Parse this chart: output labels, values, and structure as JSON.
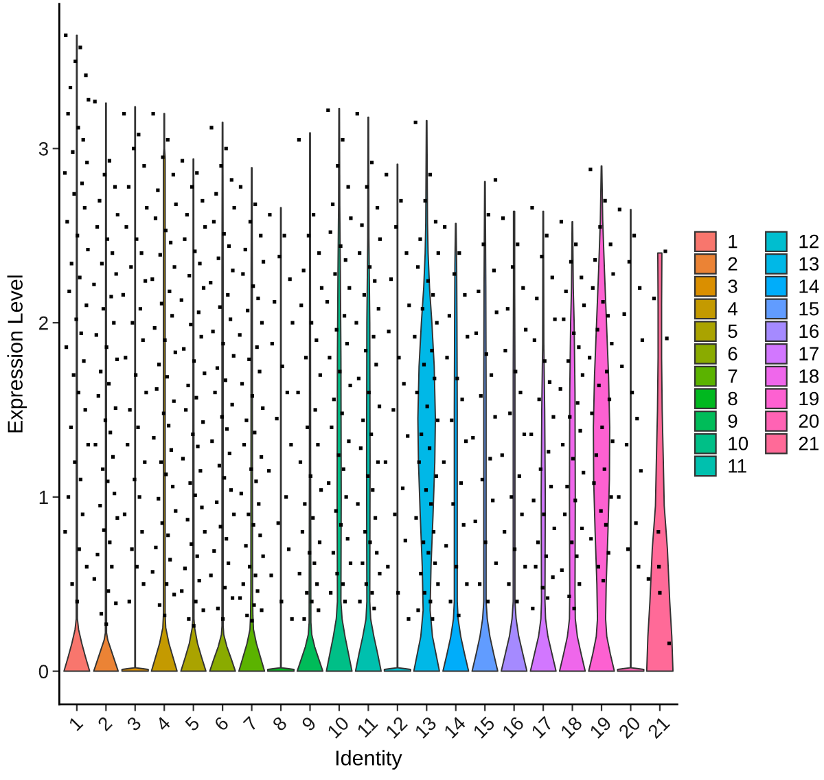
{
  "chart_data": {
    "type": "scatter",
    "xlabel": "Identity",
    "ylabel": "Expression Level",
    "xlim": [
      0.4,
      21.6
    ],
    "xticks": [
      1,
      2,
      3,
      4,
      5,
      6,
      7,
      8,
      9,
      10,
      11,
      12,
      13,
      14,
      15,
      16,
      17,
      18,
      19,
      20,
      21
    ],
    "ylim": [
      -0.19,
      3.83
    ],
    "yticks": [
      0,
      1,
      2,
      3
    ],
    "legend": "right",
    "series": [
      {
        "name": "1",
        "type": "area",
        "color": "#f8766d",
        "x": [
          1.44,
          1.3,
          1.17,
          1.06,
          1.02,
          1.01,
          0.99,
          0.98,
          0.94,
          0.83,
          0.7,
          0.56
        ],
        "values": [
          0,
          0.08,
          0.16,
          0.24,
          0.3,
          3.65,
          3.65,
          0.3,
          0.24,
          0.16,
          0.08,
          0
        ]
      },
      {
        "name": "2",
        "type": "area",
        "color": "#eb8335",
        "x": [
          2.42,
          2.3,
          2.18,
          2.06,
          2.02,
          2.01,
          1.99,
          1.98,
          1.94,
          1.82,
          1.7,
          1.58
        ],
        "values": [
          0,
          0.06,
          0.12,
          0.18,
          0.22,
          3.26,
          3.26,
          0.22,
          0.18,
          0.12,
          0.06,
          0
        ]
      },
      {
        "name": "3",
        "type": "area",
        "color": "#da8f00",
        "x": [
          3.45,
          3.45,
          3.01,
          3.01,
          2.99,
          2.99,
          2.55,
          2.55
        ],
        "values": [
          0,
          0.01,
          0.02,
          3.24,
          3.24,
          0.02,
          0.01,
          0
        ]
      },
      {
        "name": "4",
        "type": "area",
        "color": "#c49a00",
        "x": [
          4.44,
          4.3,
          4.16,
          4.05,
          4.03,
          4.03,
          4.01,
          4.01,
          3.99,
          3.99,
          3.97,
          3.97,
          3.95,
          3.84,
          3.7,
          3.56
        ],
        "values": [
          0,
          0.08,
          0.16,
          0.25,
          0.32,
          2.95,
          3.0,
          3.2,
          3.2,
          3.0,
          2.95,
          0.32,
          0.25,
          0.16,
          0.08,
          0
        ]
      },
      {
        "name": "5",
        "type": "area",
        "color": "#aaa300",
        "x": [
          5.43,
          5.28,
          5.14,
          5.04,
          5.02,
          5.01,
          4.99,
          4.98,
          4.96,
          4.86,
          4.72,
          4.57
        ],
        "values": [
          0,
          0.08,
          0.16,
          0.25,
          0.3,
          2.94,
          2.94,
          0.3,
          0.25,
          0.16,
          0.08,
          0
        ]
      },
      {
        "name": "6",
        "type": "area",
        "color": "#8aab00",
        "x": [
          6.44,
          6.3,
          6.15,
          6.04,
          6.02,
          6.02,
          6.01,
          5.99,
          5.98,
          5.98,
          5.96,
          5.85,
          5.7,
          5.56
        ],
        "values": [
          0,
          0.07,
          0.14,
          0.21,
          0.26,
          2.3,
          3.15,
          3.15,
          2.3,
          0.26,
          0.21,
          0.14,
          0.07,
          0
        ]
      },
      {
        "name": "7",
        "type": "area",
        "color": "#5bb300",
        "x": [
          7.44,
          7.3,
          7.16,
          7.06,
          7.04,
          7.03,
          7.02,
          7.01,
          6.99,
          6.98,
          6.97,
          6.96,
          6.94,
          6.84,
          6.7,
          6.56
        ],
        "values": [
          0,
          0.08,
          0.16,
          0.24,
          0.32,
          0.45,
          2.3,
          2.89,
          2.89,
          2.3,
          0.45,
          0.32,
          0.24,
          0.16,
          0.08,
          0
        ]
      },
      {
        "name": "8",
        "type": "area",
        "color": "#00b81f",
        "x": [
          8.45,
          8.45,
          8.01,
          8.01,
          7.99,
          7.99,
          7.55,
          7.55
        ],
        "values": [
          0,
          0.01,
          0.02,
          2.66,
          2.66,
          0.02,
          0.01,
          0
        ]
      },
      {
        "name": "9",
        "type": "area",
        "color": "#00bc59",
        "x": [
          9.44,
          9.3,
          9.16,
          9.06,
          9.03,
          9.02,
          9.01,
          8.99,
          8.98,
          8.97,
          8.94,
          8.84,
          8.7,
          8.56
        ],
        "values": [
          0,
          0.07,
          0.14,
          0.21,
          0.28,
          1.2,
          3.09,
          3.09,
          1.2,
          0.28,
          0.21,
          0.14,
          0.07,
          0
        ]
      },
      {
        "name": "10",
        "type": "area",
        "color": "#00bf87",
        "x": [
          10.44,
          10.32,
          10.2,
          10.1,
          10.06,
          10.07,
          10.06,
          10.04,
          10.02,
          10.01,
          9.99,
          9.98,
          9.96,
          9.94,
          9.93,
          9.94,
          9.9,
          9.8,
          9.68,
          9.56
        ],
        "values": [
          0,
          0.1,
          0.2,
          0.3,
          0.4,
          1.0,
          1.8,
          2.3,
          2.67,
          3.23,
          3.23,
          2.67,
          2.3,
          1.8,
          1.0,
          0.4,
          0.3,
          0.2,
          0.1,
          0
        ]
      },
      {
        "name": "11",
        "type": "area",
        "color": "#00c0ae",
        "x": [
          11.44,
          11.32,
          11.19,
          11.08,
          11.05,
          11.06,
          11.05,
          11.02,
          11.01,
          10.99,
          10.98,
          10.95,
          10.94,
          10.95,
          10.92,
          10.81,
          10.68,
          10.56
        ],
        "values": [
          0,
          0.1,
          0.2,
          0.3,
          0.4,
          1.2,
          2.0,
          2.49,
          3.18,
          3.18,
          2.49,
          2.0,
          1.2,
          0.4,
          0.3,
          0.2,
          0.1,
          0
        ]
      },
      {
        "name": "12",
        "type": "area",
        "color": "#00becf",
        "x": [
          12.45,
          12.45,
          12.01,
          12.01,
          11.99,
          11.99,
          11.55,
          11.55
        ],
        "values": [
          0,
          0.01,
          0.02,
          2.91,
          2.91,
          0.02,
          0.01,
          0
        ]
      },
      {
        "name": "13",
        "type": "area",
        "color": "#00b8e7",
        "x": [
          13.44,
          13.32,
          13.2,
          13.12,
          13.15,
          13.22,
          13.28,
          13.3,
          13.26,
          13.18,
          13.1,
          13.05,
          13.03,
          13.01,
          12.99,
          12.97,
          12.95,
          12.9,
          12.82,
          12.74,
          12.7,
          12.72,
          12.78,
          12.85,
          12.88,
          12.8,
          12.68,
          12.56
        ],
        "values": [
          0,
          0.1,
          0.2,
          0.35,
          0.6,
          0.9,
          1.2,
          1.45,
          1.75,
          2.0,
          2.2,
          2.4,
          2.57,
          3.16,
          3.16,
          2.57,
          2.4,
          2.2,
          2.0,
          1.75,
          1.45,
          1.2,
          0.9,
          0.6,
          0.35,
          0.2,
          0.1,
          0
        ]
      },
      {
        "name": "14",
        "type": "area",
        "color": "#00adfa",
        "x": [
          14.44,
          14.3,
          14.17,
          14.08,
          14.05,
          14.05,
          14.04,
          14.03,
          14.01,
          13.99,
          13.97,
          13.96,
          13.95,
          13.95,
          13.92,
          13.83,
          13.7,
          13.56
        ],
        "values": [
          0,
          0.1,
          0.2,
          0.3,
          0.4,
          1.5,
          2.0,
          2.33,
          2.57,
          2.57,
          2.33,
          2.0,
          1.5,
          0.4,
          0.3,
          0.2,
          0.1,
          0
        ]
      },
      {
        "name": "15",
        "type": "area",
        "color": "#619cff",
        "x": [
          15.44,
          15.3,
          15.17,
          15.08,
          15.04,
          15.04,
          15.03,
          15.01,
          14.99,
          14.97,
          14.96,
          14.96,
          14.92,
          14.83,
          14.7,
          14.56
        ],
        "values": [
          0,
          0.1,
          0.2,
          0.3,
          0.4,
          1.6,
          2.21,
          2.81,
          2.81,
          2.21,
          1.6,
          0.4,
          0.3,
          0.2,
          0.1,
          0
        ]
      },
      {
        "name": "16",
        "type": "area",
        "color": "#a58aff",
        "x": [
          16.44,
          16.3,
          16.16,
          16.07,
          16.03,
          16.03,
          16.02,
          16.02,
          15.98,
          15.98,
          15.97,
          15.97,
          15.93,
          15.84,
          15.7,
          15.56
        ],
        "values": [
          0,
          0.1,
          0.2,
          0.3,
          0.4,
          1.7,
          2.2,
          2.64,
          2.64,
          2.2,
          1.7,
          0.4,
          0.3,
          0.2,
          0.1,
          0
        ]
      },
      {
        "name": "17",
        "type": "area",
        "color": "#d277ff",
        "x": [
          17.44,
          17.3,
          17.16,
          17.08,
          17.06,
          17.07,
          17.05,
          17.02,
          17.01,
          16.99,
          16.98,
          16.95,
          16.93,
          16.94,
          16.92,
          16.84,
          16.7,
          16.56
        ],
        "values": [
          0,
          0.1,
          0.2,
          0.3,
          0.4,
          1.0,
          1.5,
          1.88,
          2.64,
          2.64,
          1.88,
          1.5,
          1.0,
          0.4,
          0.3,
          0.2,
          0.1,
          0
        ]
      },
      {
        "name": "18",
        "type": "area",
        "color": "#ef67eb",
        "x": [
          18.44,
          18.3,
          18.17,
          18.1,
          18.09,
          18.1,
          18.09,
          18.06,
          18.03,
          18.01,
          17.99,
          17.97,
          17.94,
          17.91,
          17.9,
          17.91,
          17.9,
          17.83,
          17.7,
          17.56
        ],
        "values": [
          0,
          0.1,
          0.2,
          0.3,
          0.45,
          1.0,
          1.6,
          2.0,
          2.2,
          2.58,
          2.58,
          2.2,
          2.0,
          1.6,
          1.0,
          0.45,
          0.3,
          0.2,
          0.1,
          0
        ]
      },
      {
        "name": "19",
        "type": "area",
        "color": "#fd61d1",
        "x": [
          19.44,
          19.3,
          19.18,
          19.14,
          19.16,
          19.22,
          19.27,
          19.28,
          19.24,
          19.17,
          19.1,
          19.04,
          19.02,
          19.01,
          18.99,
          18.98,
          18.96,
          18.9,
          18.83,
          18.76,
          18.72,
          18.73,
          18.78,
          18.84,
          18.86,
          18.82,
          18.7,
          18.56
        ],
        "values": [
          0,
          0.1,
          0.2,
          0.3,
          0.5,
          0.8,
          1.1,
          1.4,
          1.7,
          2.0,
          2.3,
          2.59,
          2.8,
          2.9,
          2.9,
          2.8,
          2.59,
          2.3,
          2.0,
          1.7,
          1.4,
          1.1,
          0.8,
          0.5,
          0.3,
          0.2,
          0.1,
          0
        ]
      },
      {
        "name": "20",
        "type": "area",
        "color": "#ff63b4",
        "x": [
          20.45,
          20.45,
          20.01,
          20.01,
          19.99,
          19.99,
          19.55,
          19.55
        ],
        "values": [
          0,
          0.01,
          0.02,
          2.65,
          2.65,
          0.02,
          0.01,
          0
        ]
      },
      {
        "name": "21",
        "type": "area",
        "color": "#ff6a98",
        "x": [
          21.45,
          21.41,
          21.34,
          21.26,
          21.15,
          21.12,
          21.08,
          21.06,
          21.06,
          21.07,
          20.93,
          20.94,
          20.94,
          20.92,
          20.88,
          20.85,
          20.74,
          20.66,
          20.59,
          20.55
        ],
        "values": [
          0,
          0.2,
          0.4,
          0.7,
          0.95,
          1.2,
          1.5,
          1.8,
          2.1,
          2.4,
          2.4,
          2.1,
          1.8,
          1.5,
          1.2,
          0.95,
          0.7,
          0.4,
          0.2,
          0
        ]
      },
      {
        "color": "#000000",
        "marker": "square",
        "x": [
          0.62,
          1.12,
          0.95,
          1.31,
          0.78,
          1.4,
          0.7,
          1.05,
          1.22,
          0.86,
          1.35,
          0.59,
          1.18,
          0.91,
          1.27,
          0.67,
          1.02,
          1.38,
          0.82,
          1.1,
          0.74,
          1.33,
          0.98,
          1.15,
          0.64,
          1.24,
          0.89,
          1.06,
          1.29,
          0.8,
          1.39,
          0.93,
          1.13,
          0.71,
          1.2,
          0.6,
          1.08,
          1.34,
          0.84,
          1.01
        ],
        "values": [
          3.65,
          3.58,
          3.5,
          3.42,
          3.35,
          3.28,
          3.2,
          3.12,
          3.05,
          2.98,
          2.92,
          2.86,
          2.8,
          2.74,
          2.66,
          2.58,
          2.5,
          2.42,
          2.34,
          2.26,
          2.18,
          2.1,
          2.02,
          1.94,
          1.86,
          1.78,
          1.7,
          1.6,
          1.5,
          1.4,
          1.3,
          1.2,
          1.1,
          1.0,
          0.9,
          0.8,
          0.7,
          0.6,
          0.5,
          0.4
        ]
      },
      {
        "color": "#000000",
        "marker": "square",
        "x": [
          1.62,
          2.12,
          1.95,
          2.31,
          1.78,
          2.4,
          1.7,
          2.05,
          2.22,
          1.86,
          2.35,
          1.59,
          2.18,
          1.91,
          2.27,
          1.67,
          2.02,
          2.38,
          1.82,
          2.1,
          1.74,
          2.33,
          1.98,
          2.15,
          1.64,
          2.24,
          1.89,
          2.06,
          2.29,
          1.8,
          2.39,
          1.93,
          2.13,
          1.71,
          2.2,
          1.6,
          2.08,
          2.34,
          1.84,
          2.01
        ],
        "values": [
          3.27,
          2.93,
          2.85,
          2.78,
          2.7,
          2.62,
          2.55,
          2.48,
          2.4,
          2.34,
          2.28,
          2.22,
          2.15,
          2.08,
          2.0,
          1.93,
          1.86,
          1.79,
          1.72,
          1.65,
          1.58,
          1.51,
          1.44,
          1.37,
          1.3,
          1.23,
          1.16,
          1.09,
          1.02,
          0.95,
          0.88,
          0.81,
          0.74,
          0.67,
          0.6,
          0.53,
          0.46,
          0.39,
          0.33,
          0.27
        ]
      },
      {
        "color": "#000000",
        "marker": "square",
        "x": [
          2.62,
          3.12,
          2.95,
          3.31,
          2.78,
          3.4,
          2.7,
          3.05,
          3.22,
          2.86,
          3.35,
          2.59,
          3.18,
          2.91,
          3.27,
          2.67,
          3.02,
          3.38,
          2.82,
          3.1,
          2.74,
          3.33,
          2.98,
          3.15,
          2.64,
          3.24,
          2.89,
          3.06,
          3.29,
          2.8
        ],
        "values": [
          3.2,
          3.08,
          3.0,
          2.9,
          2.78,
          2.66,
          2.55,
          2.48,
          2.4,
          2.32,
          2.24,
          2.16,
          2.08,
          2.0,
          1.9,
          1.8,
          1.7,
          1.6,
          1.5,
          1.4,
          1.3,
          1.2,
          1.1,
          1.0,
          0.9,
          0.8,
          0.7,
          0.6,
          0.5,
          0.4
        ]
      },
      {
        "color": "#000000",
        "marker": "square",
        "x": [
          3.62,
          4.12,
          3.95,
          4.31,
          3.78,
          4.4,
          3.7,
          4.05,
          4.22,
          3.86,
          4.35,
          3.59,
          4.18,
          3.91,
          4.27,
          3.67,
          4.02,
          4.38,
          3.82,
          4.1,
          3.74,
          4.33,
          3.98,
          4.15,
          3.64,
          4.24,
          3.89,
          4.06,
          4.29,
          3.8,
          4.39,
          3.93,
          4.13,
          3.71,
          4.2,
          3.6,
          4.08,
          4.34,
          3.84,
          4.01
        ],
        "values": [
          3.2,
          3.05,
          2.95,
          2.85,
          2.76,
          2.68,
          2.6,
          2.53,
          2.46,
          2.39,
          2.32,
          2.25,
          2.18,
          2.11,
          2.04,
          1.97,
          1.9,
          1.83,
          1.76,
          1.69,
          1.62,
          1.55,
          1.48,
          1.41,
          1.34,
          1.27,
          1.2,
          1.13,
          1.06,
          0.99,
          0.92,
          0.85,
          0.78,
          0.71,
          0.64,
          0.57,
          0.5,
          0.44,
          0.38,
          0.32
        ]
      },
      {
        "color": "#000000",
        "marker": "square",
        "x": [
          4.62,
          5.12,
          4.95,
          5.31,
          4.78,
          5.4,
          4.7,
          5.05,
          5.22,
          4.86,
          5.35,
          4.59,
          5.18,
          4.91,
          5.27,
          4.67,
          5.02,
          5.38,
          4.82,
          5.1,
          4.74,
          5.33,
          4.98,
          5.15,
          4.64,
          5.24,
          4.89,
          5.06,
          5.29,
          4.8,
          5.39,
          4.93,
          5.13,
          4.71,
          5.2,
          4.6,
          5.08,
          5.34,
          4.84,
          5.01
        ],
        "values": [
          2.93,
          2.86,
          2.78,
          2.7,
          2.62,
          2.55,
          2.48,
          2.41,
          2.34,
          2.27,
          2.2,
          2.13,
          2.06,
          1.99,
          1.92,
          1.85,
          1.78,
          1.71,
          1.64,
          1.57,
          1.5,
          1.43,
          1.36,
          1.29,
          1.22,
          1.15,
          1.08,
          1.01,
          0.94,
          0.87,
          0.8,
          0.73,
          0.66,
          0.59,
          0.52,
          0.46,
          0.4,
          0.35,
          0.3,
          0.26
        ]
      },
      {
        "color": "#000000",
        "marker": "square",
        "x": [
          5.62,
          6.12,
          5.95,
          6.31,
          5.78,
          6.4,
          5.7,
          6.05,
          6.22,
          5.86,
          6.35,
          5.59,
          6.18,
          5.91,
          6.27,
          5.67,
          6.02,
          6.38,
          5.82,
          6.1,
          5.74,
          6.33,
          5.98,
          6.15,
          5.64,
          6.24,
          5.89,
          6.06,
          6.29,
          5.8,
          6.39,
          5.93,
          6.13,
          5.71,
          6.2,
          5.6,
          6.08,
          6.34,
          5.84,
          6.01
        ],
        "values": [
          3.12,
          3.0,
          2.9,
          2.82,
          2.74,
          2.66,
          2.58,
          2.51,
          2.44,
          2.37,
          2.3,
          2.23,
          2.16,
          2.09,
          2.02,
          1.95,
          1.88,
          1.81,
          1.74,
          1.67,
          1.6,
          1.53,
          1.46,
          1.39,
          1.32,
          1.25,
          1.18,
          1.11,
          1.04,
          0.97,
          0.9,
          0.83,
          0.76,
          0.69,
          0.62,
          0.55,
          0.48,
          0.42,
          0.36,
          0.3
        ]
      },
      {
        "color": "#000000",
        "marker": "square",
        "x": [
          6.62,
          7.12,
          6.95,
          7.31,
          6.78,
          7.4,
          6.7,
          7.05,
          7.22,
          6.86,
          7.35,
          6.59,
          7.18,
          6.91,
          7.27,
          6.67,
          7.02,
          7.38,
          6.82,
          7.1,
          6.74,
          7.33,
          6.98,
          7.15,
          6.64,
          7.24,
          6.89,
          7.06,
          7.29,
          6.8,
          7.39,
          6.93,
          7.13,
          6.71,
          7.2,
          6.6,
          7.08,
          7.34,
          6.84,
          7.01
        ],
        "values": [
          2.78,
          2.68,
          2.58,
          2.5,
          2.42,
          2.35,
          2.28,
          2.21,
          2.14,
          2.07,
          2.0,
          1.93,
          1.86,
          1.79,
          1.72,
          1.65,
          1.58,
          1.51,
          1.44,
          1.37,
          1.3,
          1.23,
          1.16,
          1.09,
          1.02,
          0.96,
          0.9,
          0.84,
          0.78,
          0.72,
          0.66,
          0.6,
          0.55,
          0.5,
          0.46,
          0.42,
          0.38,
          0.35,
          0.32,
          0.29
        ]
      },
      {
        "color": "#000000",
        "marker": "square",
        "x": [
          7.62,
          8.12,
          7.95,
          8.31,
          7.78,
          8.4,
          7.7,
          8.05,
          8.22,
          7.86,
          8.35,
          7.59,
          8.18,
          7.91,
          8.27,
          7.67,
          8.02,
          8.38
        ],
        "values": [
          2.62,
          2.5,
          2.38,
          2.25,
          2.12,
          2.0,
          1.88,
          1.75,
          1.6,
          1.45,
          1.3,
          1.15,
          1.0,
          0.85,
          0.7,
          0.55,
          0.4,
          0.3
        ]
      },
      {
        "color": "#000000",
        "marker": "square",
        "x": [
          8.62,
          9.12,
          8.95,
          9.31,
          8.78,
          9.4,
          8.7,
          9.05,
          9.22,
          8.86,
          9.35,
          8.59,
          9.18,
          8.91,
          9.27,
          8.67,
          9.02,
          9.38,
          8.82,
          9.1,
          8.74,
          9.33,
          8.98,
          9.15,
          8.64,
          9.24,
          8.89,
          9.06,
          9.29,
          8.8
        ],
        "values": [
          3.05,
          2.62,
          2.5,
          2.4,
          2.3,
          2.2,
          2.1,
          2.0,
          1.9,
          1.8,
          1.7,
          1.6,
          1.5,
          1.4,
          1.3,
          1.2,
          1.12,
          1.04,
          0.96,
          0.88,
          0.8,
          0.74,
          0.68,
          0.62,
          0.56,
          0.5,
          0.45,
          0.4,
          0.35,
          0.3
        ]
      },
      {
        "color": "#000000",
        "marker": "square",
        "x": [
          9.62,
          10.12,
          9.95,
          10.31,
          9.78,
          10.4,
          9.7,
          10.05,
          10.22,
          9.86,
          10.35,
          9.59,
          10.18,
          9.91,
          10.27,
          9.67,
          10.02,
          10.38,
          9.82,
          10.1,
          9.74,
          10.33,
          9.98,
          10.15,
          9.64,
          10.24,
          9.89,
          10.06,
          10.29,
          9.8,
          10.39,
          9.93,
          10.13,
          9.71,
          10.2
        ],
        "values": [
          3.22,
          3.05,
          2.9,
          2.78,
          2.68,
          2.6,
          2.52,
          2.44,
          2.36,
          2.28,
          2.2,
          2.12,
          2.04,
          1.96,
          1.88,
          1.8,
          1.72,
          1.64,
          1.56,
          1.48,
          1.4,
          1.32,
          1.24,
          1.16,
          1.08,
          1.0,
          0.92,
          0.84,
          0.76,
          0.68,
          0.62,
          0.56,
          0.5,
          0.45,
          0.4
        ]
      },
      {
        "color": "#000000",
        "marker": "square",
        "x": [
          10.62,
          11.12,
          10.95,
          11.31,
          10.78,
          11.4,
          10.7,
          11.05,
          11.22,
          10.86,
          11.35,
          10.59,
          11.18,
          10.91,
          11.27,
          10.67,
          11.02,
          11.38,
          10.82,
          11.1,
          10.74,
          11.33,
          10.98,
          11.15,
          10.64,
          11.24,
          10.89,
          11.06,
          11.29,
          10.8,
          11.39,
          10.93,
          11.13,
          10.71,
          11.2
        ],
        "values": [
          3.2,
          2.92,
          2.78,
          2.66,
          2.56,
          2.48,
          2.4,
          2.32,
          2.24,
          2.16,
          2.08,
          2.0,
          1.92,
          1.84,
          1.76,
          1.68,
          1.6,
          1.52,
          1.44,
          1.36,
          1.28,
          1.2,
          1.12,
          1.04,
          0.96,
          0.88,
          0.8,
          0.74,
          0.68,
          0.62,
          0.56,
          0.5,
          0.45,
          0.4,
          0.36
        ]
      },
      {
        "color": "#000000",
        "marker": "square",
        "x": [
          11.62,
          12.12,
          11.95,
          12.31,
          11.78,
          12.4,
          11.7,
          12.05,
          12.22,
          11.86,
          12.35,
          11.59,
          12.18,
          11.91,
          12.27,
          11.67,
          12.02,
          12.38
        ],
        "values": [
          2.85,
          2.7,
          2.55,
          2.4,
          2.25,
          2.1,
          1.95,
          1.8,
          1.65,
          1.5,
          1.35,
          1.2,
          1.05,
          0.9,
          0.75,
          0.6,
          0.45,
          0.3
        ]
      },
      {
        "color": "#000000",
        "marker": "square",
        "x": [
          12.62,
          13.12,
          12.95,
          13.31,
          12.78,
          13.4,
          12.7,
          13.05,
          13.22,
          12.86,
          13.35,
          12.59,
          13.18,
          12.91,
          13.27,
          12.67,
          13.02,
          13.38,
          12.82,
          13.1,
          12.74,
          13.33,
          12.98,
          13.15,
          12.64,
          13.24,
          12.89,
          13.06,
          13.29,
          12.8,
          13.39,
          12.93,
          13.13,
          12.71,
          13.2
        ],
        "values": [
          3.15,
          2.85,
          2.7,
          2.58,
          2.48,
          2.4,
          2.32,
          2.24,
          2.16,
          2.08,
          2.0,
          1.92,
          1.84,
          1.76,
          1.68,
          1.6,
          1.52,
          1.44,
          1.36,
          1.28,
          1.2,
          1.12,
          1.04,
          0.96,
          0.88,
          0.8,
          0.74,
          0.68,
          0.62,
          0.56,
          0.5,
          0.45,
          0.4,
          0.35,
          0.3
        ]
      },
      {
        "color": "#000000",
        "marker": "square",
        "x": [
          13.62,
          14.12,
          13.95,
          14.31,
          13.78,
          14.4,
          13.7,
          14.05,
          14.22,
          13.86,
          14.35,
          13.59,
          14.18,
          13.91,
          14.27,
          13.67,
          14.02,
          14.38,
          13.82,
          14.1
        ],
        "values": [
          2.55,
          2.4,
          2.28,
          2.16,
          2.04,
          1.92,
          1.8,
          1.68,
          1.56,
          1.44,
          1.32,
          1.2,
          1.08,
          0.96,
          0.84,
          0.72,
          0.6,
          0.5,
          0.4,
          0.32
        ]
      },
      {
        "color": "#000000",
        "marker": "square",
        "x": [
          15.36,
          15.12,
          14.95,
          15.31,
          14.78,
          15.4,
          14.7,
          15.05,
          15.22,
          14.86,
          15.35,
          14.59,
          15.18,
          14.91,
          15.27,
          14.67,
          15.02,
          15.38,
          14.82,
          15.1
        ],
        "values": [
          2.82,
          2.62,
          2.45,
          2.3,
          2.18,
          2.06,
          1.94,
          1.82,
          1.7,
          1.58,
          1.46,
          1.34,
          1.22,
          1.1,
          0.98,
          0.86,
          0.74,
          0.62,
          0.5,
          0.4
        ]
      },
      {
        "color": "#000000",
        "marker": "square",
        "x": [
          15.62,
          16.12,
          15.95,
          16.31,
          15.78,
          16.4,
          15.7,
          16.05,
          16.22,
          15.86,
          16.35,
          15.59,
          16.18,
          15.91,
          16.27,
          15.67,
          16.02,
          16.38,
          15.82,
          16.1
        ],
        "values": [
          2.6,
          2.45,
          2.32,
          2.2,
          2.08,
          1.96,
          1.84,
          1.72,
          1.6,
          1.48,
          1.36,
          1.24,
          1.12,
          1.0,
          0.9,
          0.8,
          0.7,
          0.6,
          0.5,
          0.4
        ]
      },
      {
        "color": "#000000",
        "marker": "square",
        "x": [
          16.62,
          17.12,
          16.95,
          17.31,
          16.78,
          17.4,
          16.7,
          17.05,
          17.22,
          16.86,
          17.35,
          16.59,
          17.18,
          16.91,
          17.27,
          16.67,
          17.02,
          17.38,
          16.82,
          17.1,
          16.74,
          17.33,
          16.98,
          17.15,
          16.64
        ],
        "values": [
          2.66,
          2.5,
          2.38,
          2.26,
          2.14,
          2.02,
          1.9,
          1.78,
          1.66,
          1.56,
          1.46,
          1.36,
          1.26,
          1.16,
          1.06,
          0.98,
          0.9,
          0.82,
          0.74,
          0.66,
          0.6,
          0.54,
          0.48,
          0.42,
          0.36
        ]
      },
      {
        "color": "#000000",
        "marker": "square",
        "x": [
          17.62,
          18.12,
          17.95,
          18.31,
          17.78,
          18.4,
          17.7,
          18.05,
          18.22,
          17.86,
          18.35,
          17.59,
          18.18,
          17.91,
          18.27,
          17.67,
          18.02,
          18.38,
          17.82,
          18.1,
          17.74,
          18.33,
          17.98,
          18.15,
          17.64,
          18.24,
          17.89,
          18.06
        ],
        "values": [
          2.58,
          2.45,
          2.35,
          2.26,
          2.18,
          2.1,
          2.02,
          1.94,
          1.86,
          1.78,
          1.7,
          1.62,
          1.54,
          1.46,
          1.38,
          1.3,
          1.22,
          1.14,
          1.06,
          0.98,
          0.9,
          0.82,
          0.74,
          0.66,
          0.58,
          0.5,
          0.43,
          0.36
        ]
      },
      {
        "color": "#000000",
        "marker": "square",
        "x": [
          18.62,
          19.12,
          18.95,
          19.31,
          18.78,
          19.4,
          18.7,
          19.05,
          19.22,
          18.86,
          19.35,
          18.59,
          19.18,
          18.91,
          19.27,
          18.67,
          19.02,
          19.38,
          18.82,
          19.1,
          18.74,
          19.33,
          18.98,
          19.15,
          18.64,
          19.24,
          18.89,
          19.06
        ],
        "values": [
          2.88,
          2.7,
          2.55,
          2.45,
          2.36,
          2.28,
          2.2,
          2.12,
          2.04,
          1.96,
          1.88,
          1.8,
          1.72,
          1.64,
          1.56,
          1.48,
          1.4,
          1.32,
          1.24,
          1.16,
          1.08,
          1.0,
          0.92,
          0.84,
          0.76,
          0.68,
          0.6,
          0.52
        ]
      },
      {
        "color": "#000000",
        "marker": "square",
        "x": [
          19.62,
          20.12,
          19.95,
          20.31,
          19.78,
          20.4,
          19.7,
          20.05,
          20.22,
          19.86,
          20.35,
          19.59,
          20.18,
          19.91,
          20.27
        ],
        "values": [
          2.65,
          2.5,
          2.35,
          2.2,
          2.05,
          1.9,
          1.75,
          1.6,
          1.45,
          1.3,
          1.15,
          1.0,
          0.85,
          0.7,
          0.6
        ]
      },
      {
        "color": "#000000",
        "marker": "square",
        "x": [
          21.19,
          20.8,
          21.24,
          20.95,
          20.97,
          21.0,
          21.32,
          20.61
        ],
        "values": [
          2.41,
          2.14,
          1.91,
          0.8,
          0.6,
          0.45,
          0.16,
          0.53
        ]
      }
    ]
  }
}
